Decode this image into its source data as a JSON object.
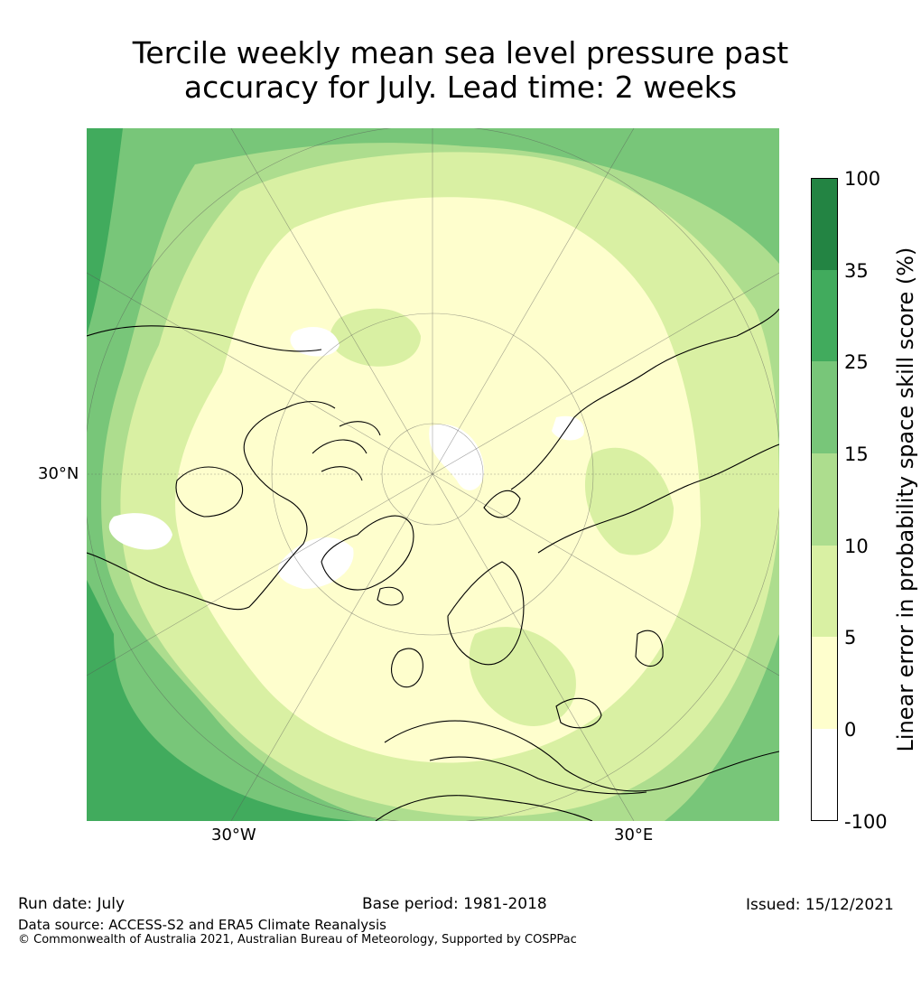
{
  "title_line1": "Tercile weekly mean sea level pressure past",
  "title_line2": "accuracy for July. Lead time: 2 weeks",
  "map": {
    "projection": "north-polar-stereographic",
    "labels": {
      "lat": "30°N",
      "lon_west": "30°W",
      "lon_east": "30°E"
    },
    "colors": {
      "white": "#ffffff",
      "c0_5": "#fefecd",
      "c5_10": "#d9f0a3",
      "c10_15": "#addd8e",
      "c15_25": "#78c679",
      "c25_35": "#41ab5d",
      "c35_100": "#238443",
      "coast": "#000000"
    }
  },
  "colorbar": {
    "title": "Linear error in probability space skill score (%)",
    "ticks": [
      "100",
      "35",
      "25",
      "15",
      "10",
      "5",
      "0",
      "-100"
    ],
    "bands": [
      {
        "color": "#238443"
      },
      {
        "color": "#41ab5d"
      },
      {
        "color": "#78c679"
      },
      {
        "color": "#addd8e"
      },
      {
        "color": "#d9f0a3"
      },
      {
        "color": "#fefecd"
      },
      {
        "color": "#ffffff"
      }
    ]
  },
  "footer": {
    "run_date": "Run date: July",
    "base_period": "Base period: 1981-2018",
    "issued": "Issued: 15/12/2021",
    "data_source": "Data source: ACCESS-S2 and ERA5 Climate Reanalysis",
    "copyright": "© Commonwealth of Australia 2021, Australian Bureau of Meteorology, Supported by COSPPac"
  }
}
